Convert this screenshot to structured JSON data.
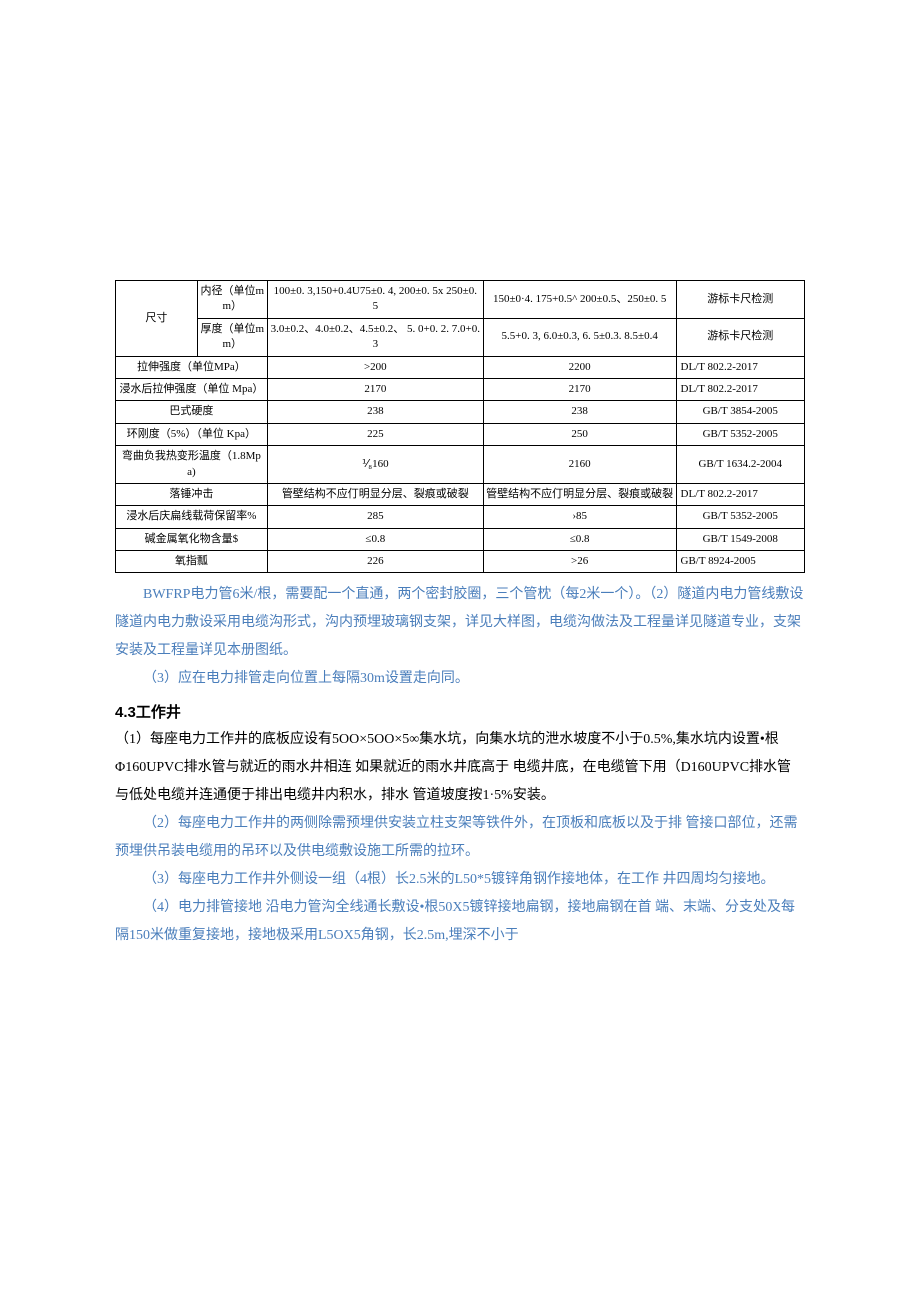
{
  "table": {
    "colors": {
      "border": "#000000",
      "text": "#000000",
      "bg": "#ffffff"
    },
    "font_size": 11,
    "rows": [
      {
        "label1": "尺寸",
        "label2": "内径（单位mm）",
        "v1": "100±0. 3,150+0.4U75±0. 4, 200±0. 5x 250±0. 5",
        "v2": "150±0·4. 175+0.5^\n200±0.5、250±0. 5",
        "std": "游标卡尺检测",
        "rowspan1": 2
      },
      {
        "label2": "厚度（单位mm）",
        "v1": "3.0±0.2、4.0±0.2、4.5±0.2、\n5. 0+0. 2. 7.0+0. 3",
        "v2": "5.5+0. 3, 6.0±0.3,\n6. 5±0.3. 8.5±0.4",
        "std": "游标卡尺检测"
      },
      {
        "label": "拉伸强度（单位MPa）",
        "v1": ">200",
        "v2": "2200",
        "std": "DL/T 802.2-2017"
      },
      {
        "label": "浸水后拉伸强度（单位 Mpa）",
        "v1": "2170",
        "v2": "2170",
        "std": "DL/T 802.2-2017"
      },
      {
        "label": "巴式硬度",
        "v1": "238",
        "v2": "238",
        "std": "GB/T 3854-2005"
      },
      {
        "label": "环刚度（5%）（单位 Kpa）",
        "v1": "225",
        "v2": "250",
        "std": "GB/T 5352-2005"
      },
      {
        "label": "弯曲负我热变形温度（1.8Mpa)",
        "v1": "⅟₈160",
        "v2": "2160",
        "std": "GB/T 1634.2-2004"
      },
      {
        "label": "落锤冲击",
        "v1": "管壁结构不应仃明显分层、裂痕或破裂",
        "v2": "管壁结构不应仃明显分层、裂痕或破裂",
        "std": "DL/T 802.2-2017"
      },
      {
        "label": "浸水后庆扁线载荷保留率%",
        "v1": "285",
        "v2": "›85",
        "std": "GB/T 5352-2005"
      },
      {
        "label": "碱金属氧化物含量$",
        "v1": "≤0.8",
        "v2": "≤0.8",
        "std": "GB/T 1549-2008"
      },
      {
        "label": "氧指瓢",
        "v1": "226",
        "v2": ">26",
        "std": "GB/T 8924-2005"
      }
    ]
  },
  "paragraphs": {
    "p1": "BWFRP电力管6米/根，需要配一个直通，两个密封胶圈，三个管枕（每2米一个）。（2）隧道内电力管线敷设",
    "p2": "隧道内电力敷设采用电缆沟形式，沟内预埋玻璃钢支架，详见大样图，电缆沟做法及工程量详见隧道专业，支架安装及工程量详见本册图纸。",
    "p3": "（3）应在电力排管走向位置上每隔30m设置走向同。",
    "heading": "4.3工作井",
    "p4": "（1）每座电力工作井的底板应设有5OO×5OO×5∞集水坑，向集水坑的泄水坡度不小于0.5%,集水坑内设置•根Φ160UPVC排水管与就近的雨水井相连 如果就近的雨水井底高于 电缆井底，在电缆管下用（D160UPVC排水管与低处电缆并连通便于排出电缆井内积水，排水 管道坡度按1·5%安装。",
    "p5": "（2）每座电力工作井的两侧除需预埋供安装立柱支架等铁件外，在顶板和底板以及于排 管接口部位，还需预埋供吊装电缆用的吊环以及供电缆敷设施工所需的拉环。",
    "p6": "（3）每座电力工作井外侧设一组（4根）长2.5米的L50*5镀锌角钢作接地体，在工作 井四周均匀接地。",
    "p7": "（4）电力排管接地 沿电力管沟全线通长敷设•根50X5镀锌接地扁钢，接地扁钢在首 端、末端、分支处及每隔150米做重复接地，接地极采用L5OX5角钢，长2.5m,埋深不小于"
  },
  "colors": {
    "blue_text": "#4a7ebb",
    "black_text": "#000000"
  }
}
